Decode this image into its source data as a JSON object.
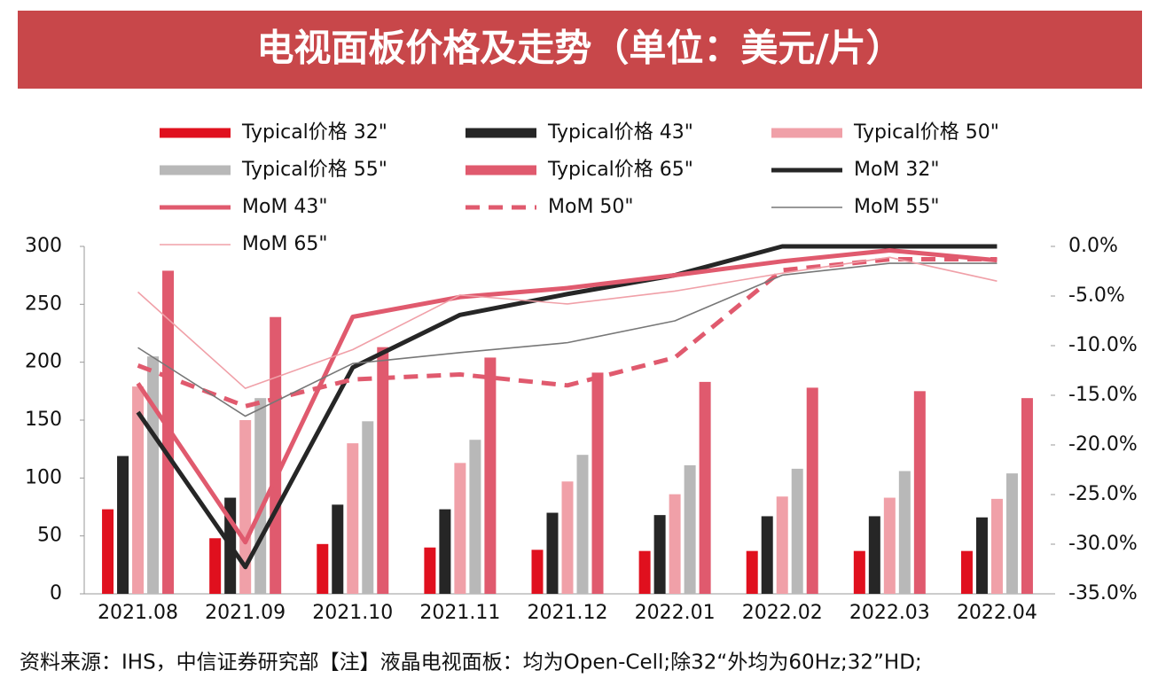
{
  "chart_data": {
    "type": "combo",
    "title": "电视面板价格及走势（单位：美元/片）",
    "note": "资料来源：IHS，中信证券研究部【注】液晶电视面板：均为Open-Cell;除32“外均为60Hz;32”HD;",
    "categories": [
      "2021.08",
      "2021.09",
      "2021.10",
      "2021.11",
      "2021.12",
      "2022.01",
      "2022.02",
      "2022.03",
      "2022.04"
    ],
    "ylim": [
      0,
      300
    ],
    "yticks": [
      0,
      50,
      100,
      150,
      200,
      250,
      300
    ],
    "y2lim": [
      -35,
      0
    ],
    "y2ticks": [
      {
        "value": 0,
        "label": "0.0%"
      },
      {
        "value": -5,
        "label": "-5.0%"
      },
      {
        "value": -10,
        "label": "-10.0%"
      },
      {
        "value": -15,
        "label": "-15.0%"
      },
      {
        "value": -20,
        "label": "-20.0%"
      },
      {
        "value": -25,
        "label": "-25.0%"
      },
      {
        "value": -30,
        "label": "-30.0%"
      },
      {
        "value": -35,
        "label": "-35.0%"
      }
    ],
    "series": [
      {
        "name": "Typical价格 32\"",
        "kind": "bar",
        "color": "#e0101e",
        "values": [
          73,
          48,
          43,
          40,
          38,
          37,
          37,
          37,
          37
        ]
      },
      {
        "name": "Typical价格 43\"",
        "kind": "bar",
        "color": "#262626",
        "values": [
          119,
          83,
          77,
          73,
          70,
          68,
          67,
          67,
          66
        ]
      },
      {
        "name": "Typical价格 50\"",
        "kind": "bar",
        "color": "#f0a0a8",
        "values": [
          179,
          150,
          130,
          113,
          97,
          86,
          84,
          83,
          82
        ]
      },
      {
        "name": "Typical价格 55\"",
        "kind": "bar",
        "color": "#b8b8b8",
        "values": [
          205,
          169,
          149,
          133,
          120,
          111,
          108,
          106,
          104
        ]
      },
      {
        "name": "Typical价格 65\"",
        "kind": "bar",
        "color": "#e05a6e",
        "values": [
          279,
          239,
          213,
          204,
          191,
          183,
          178,
          175,
          169
        ]
      },
      {
        "name": "MoM 32\"",
        "kind": "line",
        "axis": "y2",
        "thick": true,
        "color": "#262626",
        "values": [
          -16.7,
          -32.3,
          -12.2,
          -6.9,
          -4.8,
          -2.9,
          0,
          0,
          0
        ]
      },
      {
        "name": "MoM 43\"",
        "kind": "line",
        "axis": "y2",
        "thick": true,
        "color": "#e05a6e",
        "values": [
          -13.8,
          -29.8,
          -7.1,
          -5.1,
          -4.2,
          -2.9,
          -1.5,
          -0.4,
          -1.4
        ]
      },
      {
        "name": "MoM 50\"",
        "kind": "line",
        "axis": "y2",
        "thick": true,
        "dashed": true,
        "color": "#e05a6e",
        "values": [
          -12.0,
          -16.1,
          -13.4,
          -12.9,
          -14.0,
          -11.2,
          -2.4,
          -1.3,
          -1.3
        ]
      },
      {
        "name": "MoM 55\"",
        "kind": "line",
        "axis": "y2",
        "color": "#777777",
        "values": [
          -10.2,
          -17.1,
          -11.8,
          -10.7,
          -9.7,
          -7.5,
          -2.9,
          -1.7,
          -1.7
        ]
      },
      {
        "name": "MoM 65\"",
        "kind": "line",
        "axis": "y2",
        "color": "#f0a0a8",
        "values": [
          -4.6,
          -14.3,
          -10.4,
          -4.9,
          -5.8,
          -4.5,
          -2.7,
          -1.1,
          -3.5
        ]
      }
    ]
  }
}
